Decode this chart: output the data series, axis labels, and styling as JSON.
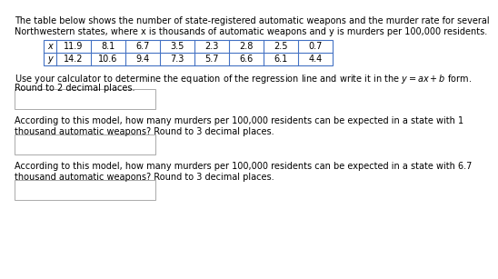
{
  "title_line1": "The table below shows the number of state-registered automatic weapons and the murder rate for several",
  "title_line2": "Northwestern states, where x is thousands of automatic weapons and y is murders per 100,000 residents.",
  "x_label": "x",
  "y_label": "y",
  "x_values": [
    "11.9",
    "8.1",
    "6.7",
    "3.5",
    "2.3",
    "2.8",
    "2.5",
    "0.7"
  ],
  "y_values": [
    "14.2",
    "10.6",
    "9.4",
    "7.3",
    "5.7",
    "6.6",
    "6.1",
    "4.4"
  ],
  "instr1a": "Use your calculator to determine the equation of the regression line and write it in the ",
  "instr1b": " form.",
  "instr1c": "Round to 2 decimal places.",
  "instr2a": "According to this model, how many murders per 100,000 residents can be expected in a state with 1",
  "instr2b": "thousand automatic weapons? Round to 3 decimal places.",
  "instr3a": "According to this model, how many murders per 100,000 residents can be expected in a state with 6.7",
  "instr3b": "thousand automatic weapons? Round to 3 decimal places.",
  "bg_color": "#ffffff",
  "text_color": "#000000",
  "table_border_color": "#4472c4",
  "font_size": 7.0
}
